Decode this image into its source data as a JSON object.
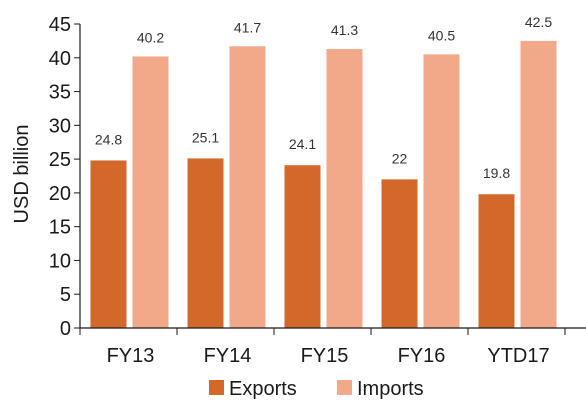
{
  "chart_data": {
    "type": "bar",
    "title": "",
    "xlabel": "",
    "ylabel": "USD billion",
    "ylim": [
      0,
      45
    ],
    "yticks": [
      0,
      5,
      10,
      15,
      20,
      25,
      30,
      35,
      40,
      45
    ],
    "grid": false,
    "legend_position": "bottom",
    "categories": [
      "FY13",
      "FY14",
      "FY15",
      "FY16",
      "YTD17"
    ],
    "series": [
      {
        "name": "Exports",
        "color": "#d2692b",
        "values": [
          24.8,
          25.1,
          24.1,
          22,
          19.8
        ]
      },
      {
        "name": "Imports",
        "color": "#f2a98a",
        "values": [
          40.2,
          41.7,
          41.3,
          40.5,
          42.5
        ]
      }
    ]
  }
}
